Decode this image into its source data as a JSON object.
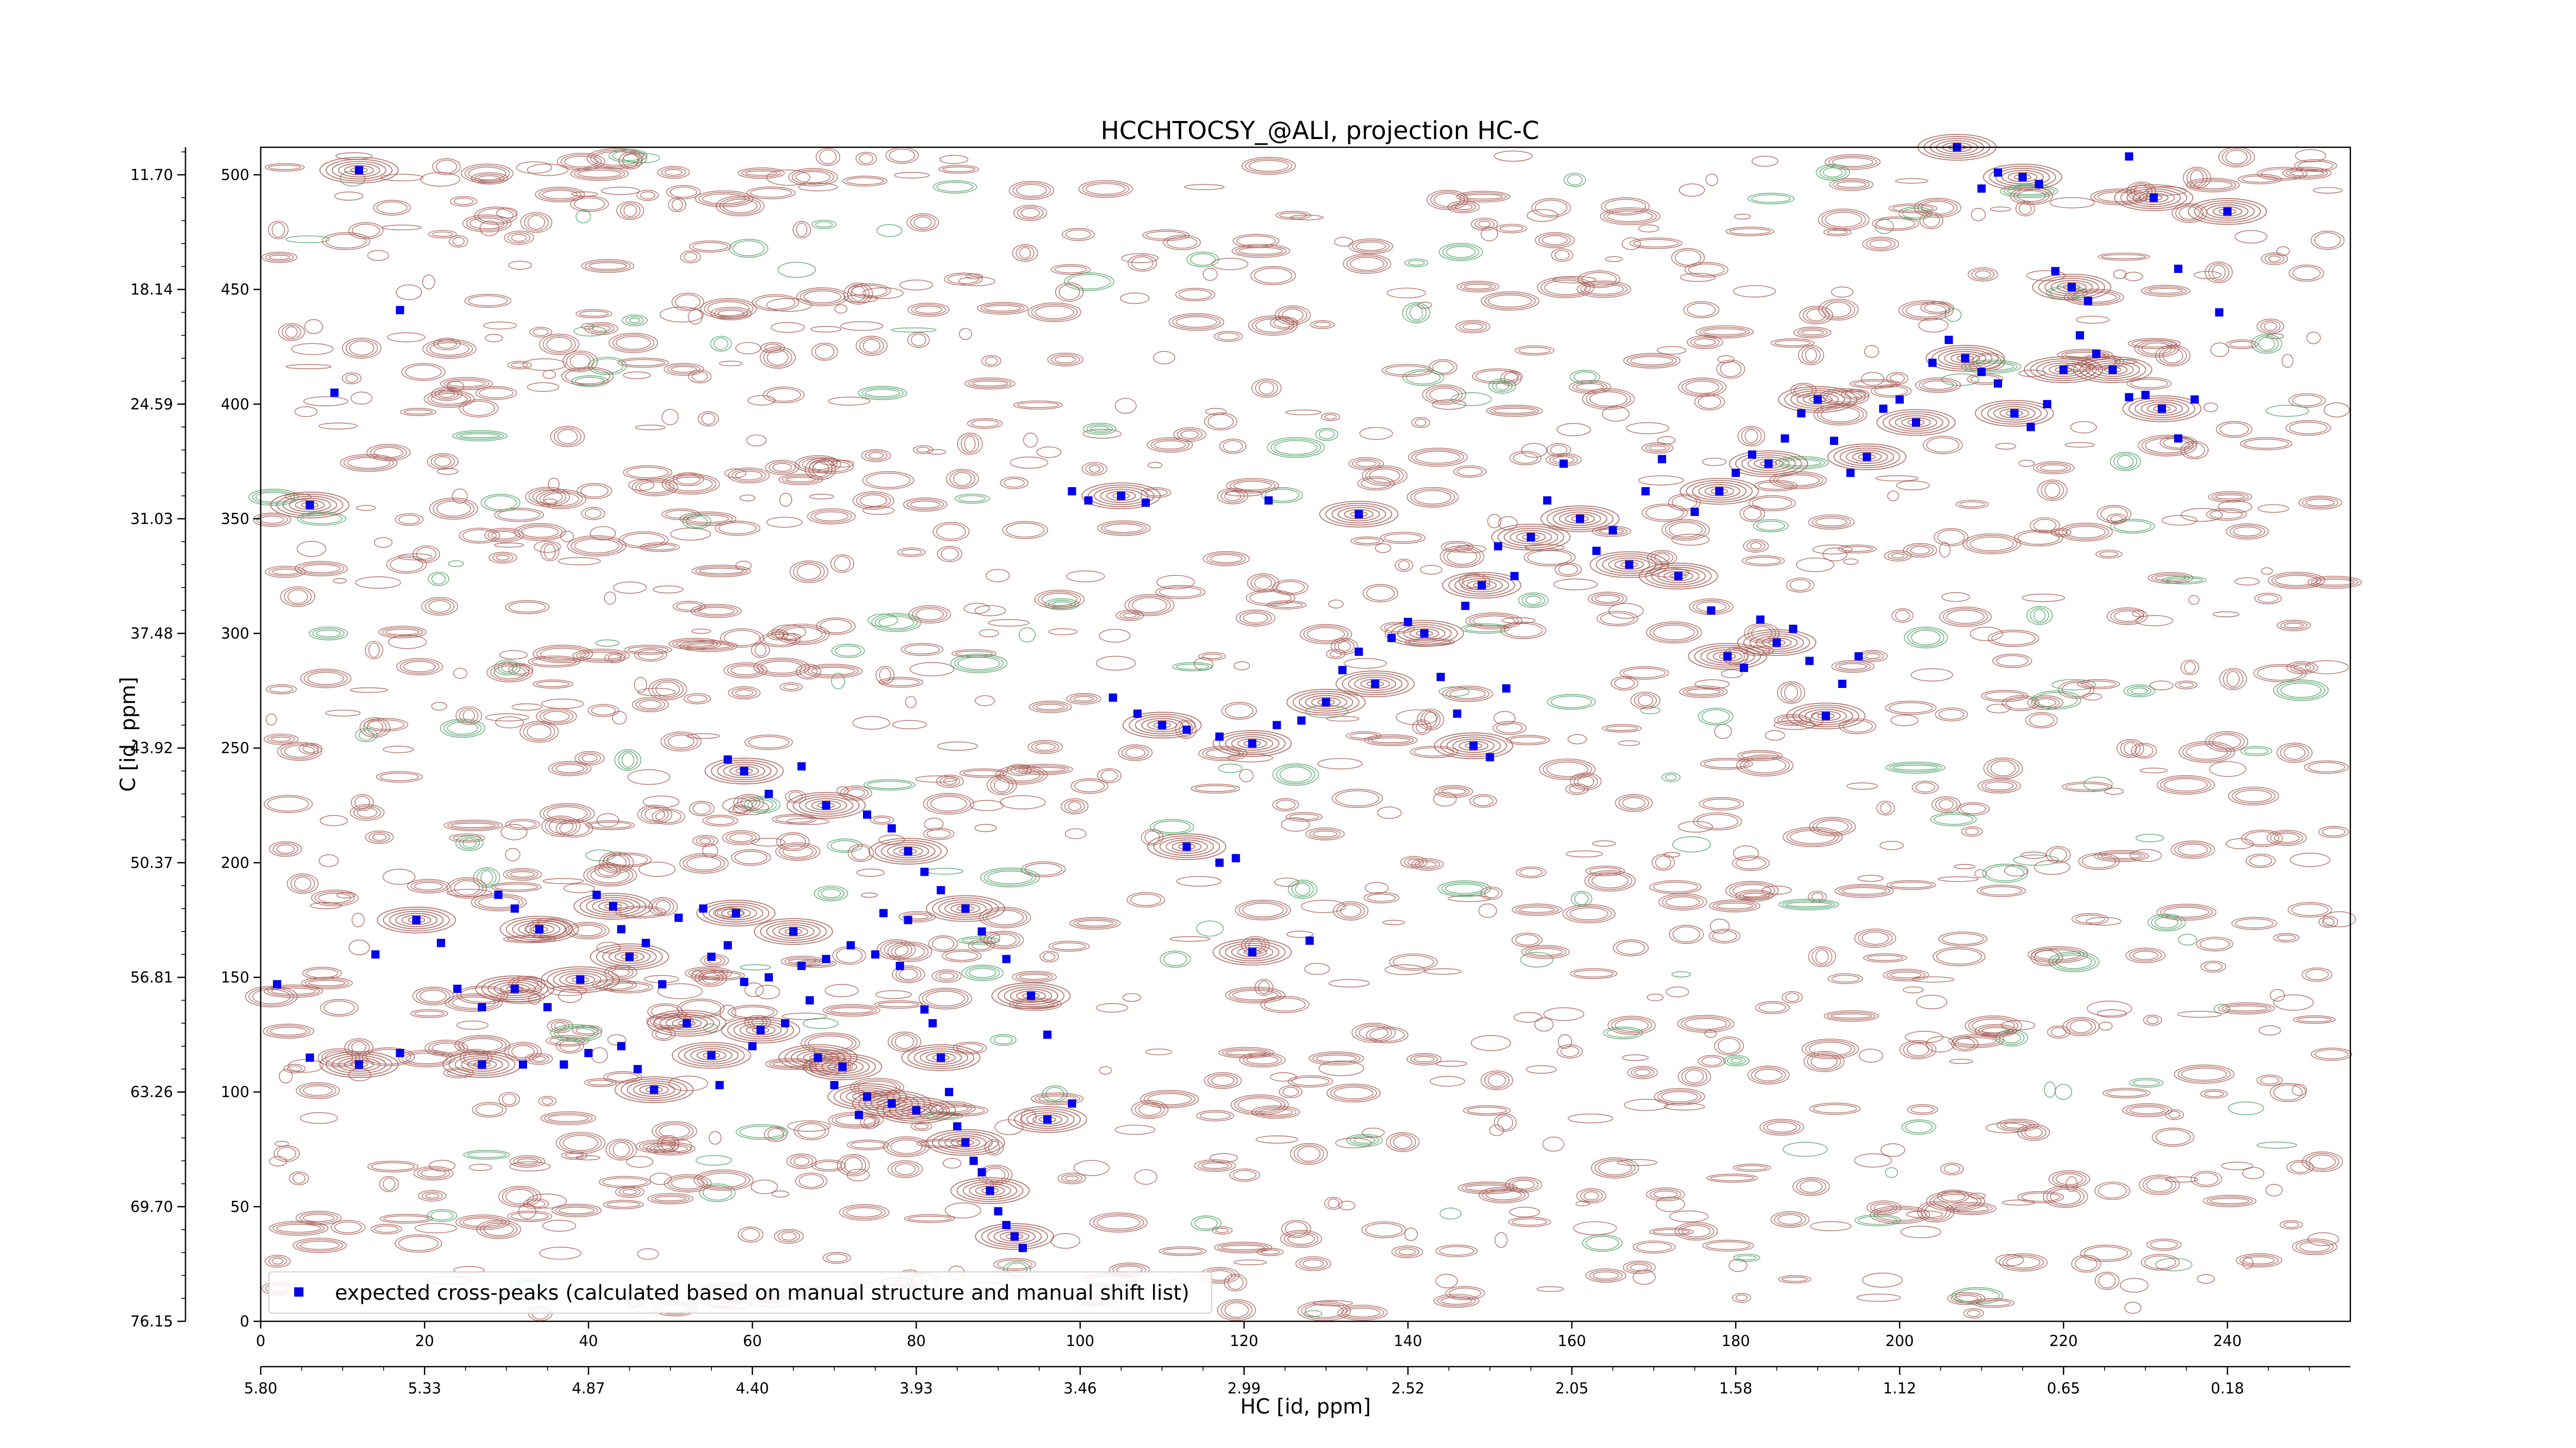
{
  "chart_data": {
    "type": "scatter",
    "title": "HCCHTOCSY_@ALI, projection HC-C",
    "xlabel": "HC [id, ppm]",
    "ylabel": "C [id, ppm]",
    "x_index_range": [
      0,
      255
    ],
    "y_index_range": [
      0,
      512
    ],
    "x_index_ticks": [
      "0",
      "20",
      "40",
      "60",
      "80",
      "100",
      "120",
      "140",
      "160",
      "180",
      "200",
      "220",
      "240"
    ],
    "x_ppm_ticks": [
      "5.80",
      "5.33",
      "4.87",
      "4.40",
      "3.93",
      "3.46",
      "2.99",
      "2.52",
      "2.05",
      "1.58",
      "1.12",
      "0.65",
      "0.18"
    ],
    "y_index_ticks": [
      "0",
      "50",
      "100",
      "150",
      "200",
      "250",
      "300",
      "350",
      "400",
      "450",
      "500"
    ],
    "y_ppm_ticks": [
      "76.15",
      "69.70",
      "63.26",
      "56.81",
      "50.37",
      "43.92",
      "37.48",
      "31.03",
      "24.59",
      "18.14",
      "11.70"
    ],
    "legend": {
      "label": "expected cross-peaks (calculated based on manual structure and manual shift list)",
      "position": "lower-left"
    },
    "colors": {
      "positive_contours": "#a0524a",
      "negative_contours": "#3f9a5a",
      "expected_peaks": "#0000ee"
    },
    "series": [
      {
        "name": "expected cross-peaks (calculated based on manual structure and manual shift list)",
        "points": [
          [
            12,
            502
          ],
          [
            17,
            441
          ],
          [
            9,
            405
          ],
          [
            6,
            356
          ],
          [
            2,
            147
          ],
          [
            6,
            115
          ],
          [
            12,
            112
          ],
          [
            14,
            160
          ],
          [
            17,
            117
          ],
          [
            19,
            175
          ],
          [
            22,
            165
          ],
          [
            24,
            145
          ],
          [
            27,
            112
          ],
          [
            27,
            137
          ],
          [
            29,
            186
          ],
          [
            31,
            145
          ],
          [
            31,
            180
          ],
          [
            32,
            112
          ],
          [
            34,
            171
          ],
          [
            35,
            137
          ],
          [
            37,
            112
          ],
          [
            39,
            149
          ],
          [
            40,
            117
          ],
          [
            41,
            186
          ],
          [
            43,
            181
          ],
          [
            44,
            171
          ],
          [
            44,
            120
          ],
          [
            45,
            159
          ],
          [
            46,
            110
          ],
          [
            47,
            165
          ],
          [
            48,
            101
          ],
          [
            49,
            147
          ],
          [
            51,
            176
          ],
          [
            52,
            130
          ],
          [
            54,
            180
          ],
          [
            55,
            159
          ],
          [
            55,
            116
          ],
          [
            56,
            103
          ],
          [
            57,
            164
          ],
          [
            58,
            178
          ],
          [
            59,
            148
          ],
          [
            60,
            120
          ],
          [
            61,
            127
          ],
          [
            62,
            150
          ],
          [
            64,
            130
          ],
          [
            65,
            170
          ],
          [
            66,
            155
          ],
          [
            67,
            140
          ],
          [
            68,
            115
          ],
          [
            69,
            158
          ],
          [
            70,
            103
          ],
          [
            71,
            111
          ],
          [
            72,
            164
          ],
          [
            73,
            90
          ],
          [
            74,
            98
          ],
          [
            75,
            160
          ],
          [
            76,
            178
          ],
          [
            77,
            95
          ],
          [
            78,
            155
          ],
          [
            79,
            175
          ],
          [
            80,
            92
          ],
          [
            81,
            136
          ],
          [
            82,
            130
          ],
          [
            83,
            115
          ],
          [
            84,
            100
          ],
          [
            85,
            85
          ],
          [
            86,
            78
          ],
          [
            87,
            70
          ],
          [
            88,
            65
          ],
          [
            89,
            57
          ],
          [
            90,
            48
          ],
          [
            91,
            42
          ],
          [
            92,
            37
          ],
          [
            93,
            32
          ],
          [
            57,
            245
          ],
          [
            59,
            240
          ],
          [
            62,
            230
          ],
          [
            66,
            242
          ],
          [
            69,
            225
          ],
          [
            74,
            221
          ],
          [
            77,
            215
          ],
          [
            79,
            205
          ],
          [
            81,
            196
          ],
          [
            83,
            188
          ],
          [
            86,
            180
          ],
          [
            88,
            170
          ],
          [
            91,
            158
          ],
          [
            94,
            142
          ],
          [
            96,
            125
          ],
          [
            99,
            95
          ],
          [
            96,
            88
          ],
          [
            99,
            362
          ],
          [
            101,
            358
          ],
          [
            105,
            360
          ],
          [
            108,
            357
          ],
          [
            123,
            358
          ],
          [
            134,
            352
          ],
          [
            104,
            272
          ],
          [
            107,
            265
          ],
          [
            110,
            260
          ],
          [
            113,
            258
          ],
          [
            117,
            255
          ],
          [
            121,
            252
          ],
          [
            124,
            260
          ],
          [
            127,
            262
          ],
          [
            130,
            270
          ],
          [
            132,
            284
          ],
          [
            134,
            292
          ],
          [
            136,
            278
          ],
          [
            138,
            298
          ],
          [
            140,
            305
          ],
          [
            142,
            300
          ],
          [
            144,
            281
          ],
          [
            146,
            265
          ],
          [
            148,
            251
          ],
          [
            150,
            246
          ],
          [
            152,
            276
          ],
          [
            113,
            207
          ],
          [
            117,
            200
          ],
          [
            119,
            202
          ],
          [
            121,
            161
          ],
          [
            128,
            166
          ],
          [
            147,
            312
          ],
          [
            149,
            321
          ],
          [
            151,
            338
          ],
          [
            153,
            325
          ],
          [
            155,
            342
          ],
          [
            157,
            358
          ],
          [
            159,
            374
          ],
          [
            161,
            350
          ],
          [
            163,
            336
          ],
          [
            165,
            345
          ],
          [
            167,
            330
          ],
          [
            169,
            362
          ],
          [
            171,
            376
          ],
          [
            173,
            325
          ],
          [
            175,
            353
          ],
          [
            177,
            310
          ],
          [
            179,
            290
          ],
          [
            181,
            285
          ],
          [
            183,
            306
          ],
          [
            185,
            296
          ],
          [
            187,
            302
          ],
          [
            189,
            288
          ],
          [
            191,
            264
          ],
          [
            193,
            278
          ],
          [
            195,
            290
          ],
          [
            178,
            362
          ],
          [
            180,
            370
          ],
          [
            182,
            378
          ],
          [
            184,
            374
          ],
          [
            186,
            385
          ],
          [
            188,
            396
          ],
          [
            190,
            402
          ],
          [
            192,
            384
          ],
          [
            194,
            370
          ],
          [
            196,
            377
          ],
          [
            198,
            398
          ],
          [
            200,
            402
          ],
          [
            202,
            392
          ],
          [
            204,
            418
          ],
          [
            206,
            428
          ],
          [
            208,
            420
          ],
          [
            210,
            414
          ],
          [
            212,
            409
          ],
          [
            214,
            396
          ],
          [
            216,
            390
          ],
          [
            218,
            400
          ],
          [
            220,
            415
          ],
          [
            222,
            430
          ],
          [
            224,
            422
          ],
          [
            226,
            415
          ],
          [
            228,
            403
          ],
          [
            230,
            404
          ],
          [
            232,
            398
          ],
          [
            234,
            385
          ],
          [
            236,
            402
          ],
          [
            207,
            512
          ],
          [
            210,
            494
          ],
          [
            212,
            501
          ],
          [
            215,
            499
          ],
          [
            217,
            496
          ],
          [
            219,
            458
          ],
          [
            221,
            451
          ],
          [
            223,
            445
          ],
          [
            228,
            508
          ],
          [
            231,
            490
          ],
          [
            234,
            459
          ],
          [
            239,
            440
          ],
          [
            240,
            484
          ]
        ]
      }
    ]
  }
}
